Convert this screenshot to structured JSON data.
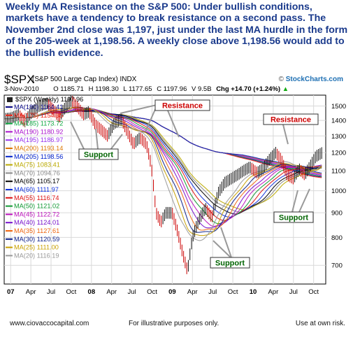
{
  "headline": "Weekly MA Resistance on the S&P 500:  Under bullish conditions, markets have a tendency to break resistance on a second pass.  The November 2nd close was 1,197, just under the last MA hurdle in the form of the 205-week at 1,198.56.  A weekly close above 1,198.56 would add to the bullish evidence.",
  "header": {
    "symbol": "$SPX",
    "symbol_desc": "(S&P 500 Large Cap Index) INDX",
    "watermark_prefix": "© ",
    "watermark_brand": "StockCharts.com",
    "date": "3-Nov-2010",
    "open": "O 1185.71",
    "high": "H 1198.30",
    "low": "L 1177.65",
    "close": "C 1197.96",
    "volume": "V 9.5B",
    "change": "Chg +14.70 (+1.24%)",
    "change_arrow": "▲"
  },
  "footer": {
    "website": "www.ciovaccocapital.com",
    "disclaimer": "For illustrative purposes only.",
    "risk": "Use at own risk."
  },
  "colors": {
    "price_up": "#111111",
    "price_down": "#cc0000",
    "callout_support": "#006400",
    "callout_resistance": "#cc0000",
    "grid": "#d9d9d9"
  },
  "chart_data": {
    "type": "line",
    "title": "$SPX (Weekly) 1197.96",
    "y_scale": "log",
    "ylim": [
      640,
      1580
    ],
    "y_ticks": [
      700,
      800,
      900,
      1000,
      1100,
      1200,
      1300,
      1400,
      1500
    ],
    "x_ticks": [
      {
        "label": "07",
        "t": 2007.0,
        "bold": true
      },
      {
        "label": "Apr",
        "t": 2007.25,
        "bold": false
      },
      {
        "label": "Jul",
        "t": 2007.5,
        "bold": false
      },
      {
        "label": "Oct",
        "t": 2007.75,
        "bold": false
      },
      {
        "label": "08",
        "t": 2008.0,
        "bold": true
      },
      {
        "label": "Apr",
        "t": 2008.25,
        "bold": false
      },
      {
        "label": "Jul",
        "t": 2008.5,
        "bold": false
      },
      {
        "label": "Oct",
        "t": 2008.75,
        "bold": false
      },
      {
        "label": "09",
        "t": 2009.0,
        "bold": true
      },
      {
        "label": "Apr",
        "t": 2009.25,
        "bold": false
      },
      {
        "label": "Jul",
        "t": 2009.5,
        "bold": false
      },
      {
        "label": "Oct",
        "t": 2009.75,
        "bold": false
      },
      {
        "label": "10",
        "t": 2010.0,
        "bold": true
      },
      {
        "label": "Apr",
        "t": 2010.25,
        "bold": false
      },
      {
        "label": "Jul",
        "t": 2010.5,
        "bold": false
      },
      {
        "label": "Oct",
        "t": 2010.75,
        "bold": false
      }
    ],
    "xlim": [
      2006.92,
      2010.9
    ],
    "price_series": {
      "name": "$SPX (Weekly) 1197.96",
      "points": [
        [
          2006.92,
          1410
        ],
        [
          2007.0,
          1415
        ],
        [
          2007.1,
          1440
        ],
        [
          2007.17,
          1390
        ],
        [
          2007.25,
          1450
        ],
        [
          2007.35,
          1500
        ],
        [
          2007.45,
          1520
        ],
        [
          2007.55,
          1460
        ],
        [
          2007.6,
          1420
        ],
        [
          2007.65,
          1470
        ],
        [
          2007.75,
          1540
        ],
        [
          2007.82,
          1500
        ],
        [
          2007.9,
          1440
        ],
        [
          2007.97,
          1460
        ],
        [
          2008.05,
          1370
        ],
        [
          2008.12,
          1340
        ],
        [
          2008.2,
          1300
        ],
        [
          2008.28,
          1380
        ],
        [
          2008.37,
          1410
        ],
        [
          2008.45,
          1320
        ],
        [
          2008.52,
          1250
        ],
        [
          2008.6,
          1290
        ],
        [
          2008.68,
          1250
        ],
        [
          2008.74,
          1130
        ],
        [
          2008.8,
          900
        ],
        [
          2008.86,
          860
        ],
        [
          2008.92,
          900
        ],
        [
          2009.0,
          900
        ],
        [
          2009.06,
          830
        ],
        [
          2009.13,
          740
        ],
        [
          2009.19,
          680
        ],
        [
          2009.25,
          800
        ],
        [
          2009.33,
          870
        ],
        [
          2009.41,
          920
        ],
        [
          2009.49,
          880
        ],
        [
          2009.57,
          990
        ],
        [
          2009.65,
          1040
        ],
        [
          2009.73,
          1060
        ],
        [
          2009.81,
          1080
        ],
        [
          2009.88,
          1100
        ],
        [
          2009.96,
          1120
        ],
        [
          2010.05,
          1090
        ],
        [
          2010.12,
          1110
        ],
        [
          2010.2,
          1160
        ],
        [
          2010.28,
          1200
        ],
        [
          2010.35,
          1160
        ],
        [
          2010.42,
          1080
        ],
        [
          2010.5,
          1060
        ],
        [
          2010.57,
          1110
        ],
        [
          2010.64,
          1080
        ],
        [
          2010.7,
          1120
        ],
        [
          2010.78,
          1180
        ],
        [
          2010.85,
          1198
        ]
      ]
    },
    "legend": [
      {
        "label": "MA(180) 1164.41",
        "color": "#0a0a8a"
      },
      {
        "label": "MA(175) 1154.35",
        "color": "#ee2211"
      },
      {
        "label": "MA(185) 1173.72",
        "color": "#11aa44"
      },
      {
        "label": "MA(190) 1180.92",
        "color": "#aa11cc"
      },
      {
        "label": "MA(195) 1186.97",
        "color": "#9933ee"
      },
      {
        "label": "MA(200) 1193.14",
        "color": "#dd7700"
      },
      {
        "label": "MA(205) 1198.56",
        "color": "#0022cc"
      },
      {
        "label": "MA(75) 1083.41",
        "color": "#bbaa00"
      },
      {
        "label": "MA(70) 1094.76",
        "color": "#888888"
      },
      {
        "label": "MA(65) 1105.17",
        "color": "#000000"
      },
      {
        "label": "MA(60) 1111.97",
        "color": "#1133dd"
      },
      {
        "label": "MA(55) 1116.74",
        "color": "#dd1111"
      },
      {
        "label": "MA(50) 1121.02",
        "color": "#119933"
      },
      {
        "label": "MA(45) 1122.72",
        "color": "#bb11bb"
      },
      {
        "label": "MA(40) 1124.01",
        "color": "#7711cc"
      },
      {
        "label": "MA(35) 1127.61",
        "color": "#ee6611"
      },
      {
        "label": "MA(30) 1120.59",
        "color": "#0b1f8a"
      },
      {
        "label": "MA(25) 1111.00",
        "color": "#c8a000"
      },
      {
        "label": "MA(20) 1116.19",
        "color": "#999999"
      }
    ],
    "annotations": {
      "resistance": [
        "Resistance",
        "Resistance"
      ],
      "support": [
        "Support",
        "Support",
        "Support"
      ]
    }
  }
}
